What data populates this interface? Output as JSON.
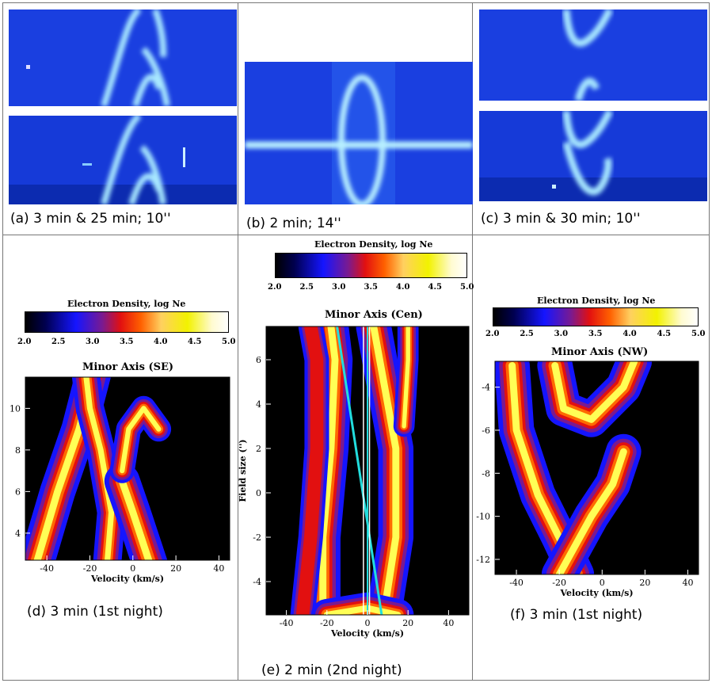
{
  "captions": {
    "a": "(a)  3 min  &  25 min;  10''",
    "b": "(b)  2 min;  14''",
    "c": "(c)  3 min  &  30 min;  10''",
    "d": "(d)  3 min  (1st  night)",
    "e": "(e)  2 min  (2nd  night)",
    "f": "(f)  3 min  (1st  night)"
  },
  "colorbar": {
    "title": "Electron Density, log Ne",
    "ticks": [
      "2.0",
      "2.5",
      "3.0",
      "3.5",
      "4.0",
      "4.5",
      "5.0"
    ]
  },
  "colors": {
    "spectrum_bg": "#1a3fe0",
    "contour_blue": "#1515ff",
    "contour_red": "#e21010",
    "contour_orange": "#ff6a00",
    "contour_yellow": "#ffff55",
    "cyan_line": "#22dddd"
  },
  "chart_data": [
    {
      "type": "heatmap",
      "title": "Minor Axis (SE)",
      "xlabel": "Velocity (km/s)",
      "ylabel": "",
      "x_ticks": [
        "-40",
        "-20",
        "0",
        "20",
        "40"
      ],
      "y_ticks": [
        "4",
        "6",
        "8",
        "10"
      ],
      "xlim": [
        -50,
        45
      ],
      "ylim": [
        2.7,
        11.5
      ]
    },
    {
      "type": "heatmap",
      "title": "Minor Axis (Cen)",
      "xlabel": "Velocity (km/s)",
      "ylabel": "Field size ('')",
      "x_ticks": [
        "-40",
        "-20",
        "0",
        "20",
        "40"
      ],
      "y_ticks": [
        "-4",
        "-2",
        "0",
        "2",
        "4",
        "6"
      ],
      "xlim": [
        -50,
        50
      ],
      "ylim": [
        -5.5,
        7.5
      ]
    },
    {
      "type": "heatmap",
      "title": "Minor Axis (NW)",
      "xlabel": "Velocity (km/s)",
      "ylabel": "",
      "x_ticks": [
        "-40",
        "-20",
        "0",
        "20",
        "40"
      ],
      "y_ticks": [
        "-12",
        "-10",
        "-8",
        "-6",
        "-4"
      ],
      "xlim": [
        -50,
        45
      ],
      "ylim": [
        -12.7,
        -2.8
      ]
    }
  ]
}
